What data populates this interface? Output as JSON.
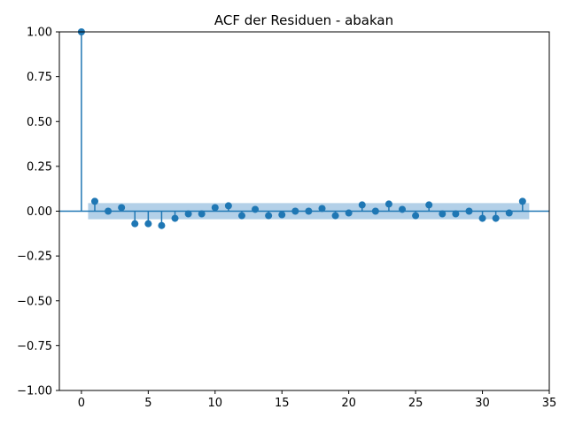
{
  "chart_data": {
    "type": "stem",
    "title": "ACF der Residuen - abakan",
    "xlabel": "",
    "ylabel": "",
    "xlim": [
      -1.65,
      35.0
    ],
    "ylim": [
      -1.0,
      1.0
    ],
    "x_ticks": [
      0,
      5,
      10,
      15,
      20,
      25,
      30,
      35
    ],
    "y_ticks": [
      1.0,
      0.75,
      0.5,
      0.25,
      0.0,
      -0.25,
      -0.5,
      -0.75,
      -1.0
    ],
    "x_tick_labels": [
      "0",
      "5",
      "10",
      "15",
      "20",
      "25",
      "30",
      "35"
    ],
    "y_tick_labels": [
      "1.00",
      "0.75",
      "0.50",
      "0.25",
      "0.00",
      "−0.25",
      "−0.50",
      "−0.75",
      "−1.00"
    ],
    "lags": [
      0,
      1,
      2,
      3,
      4,
      5,
      6,
      7,
      8,
      9,
      10,
      11,
      12,
      13,
      14,
      15,
      16,
      17,
      18,
      19,
      20,
      21,
      22,
      23,
      24,
      25,
      26,
      27,
      28,
      29,
      30,
      31,
      32,
      33
    ],
    "values": [
      1.0,
      0.055,
      0.0,
      0.02,
      -0.07,
      -0.07,
      -0.08,
      -0.04,
      -0.015,
      -0.015,
      0.02,
      0.03,
      -0.025,
      0.01,
      -0.025,
      -0.02,
      0.0,
      0.0,
      0.015,
      -0.025,
      -0.01,
      0.035,
      0.0,
      0.04,
      0.01,
      -0.025,
      0.035,
      -0.015,
      -0.015,
      0.0,
      -0.04,
      -0.04,
      -0.01,
      0.055
    ],
    "confidence_band": {
      "x_range": [
        0.5,
        33.5
      ],
      "lower": -0.045,
      "upper": 0.045
    },
    "colors": {
      "marker": "#1f77b4",
      "band": "#a6c8e4",
      "axis": "#000000"
    },
    "grid": false
  }
}
